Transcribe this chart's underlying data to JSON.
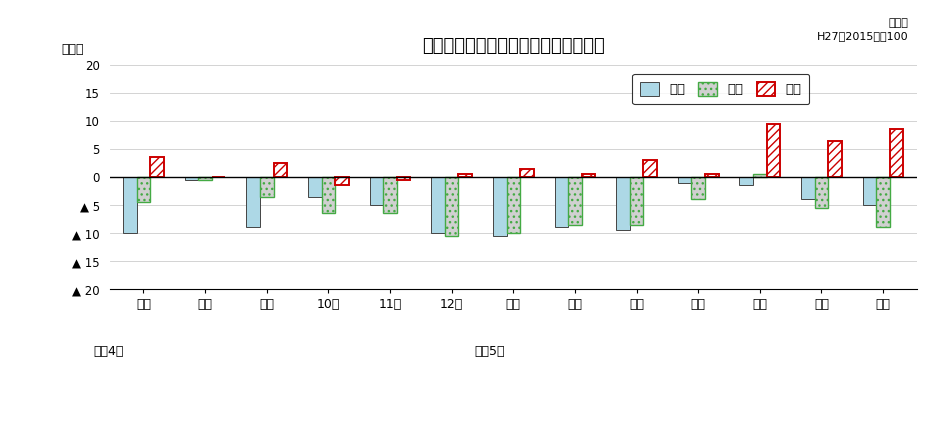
{
  "title": "生産・出荷・在庫の前年同月比の推移",
  "ylabel": "（％）",
  "note_line1": "原指数",
  "note_line2": "H27（2015）＝100",
  "months": [
    "７月",
    "８月",
    "９月",
    "10月",
    "11月",
    "12月",
    "１月",
    "２月",
    "３月",
    "４月",
    "５月",
    "６月",
    "７月"
  ],
  "reiwa4_label": "令和4年",
  "reiwa5_label": "令和5年",
  "reiwa4_idx": 0,
  "reiwa5_idx": 6,
  "production": [
    -10.0,
    -0.5,
    -9.0,
    -3.5,
    -5.0,
    -10.0,
    -10.5,
    -9.0,
    -9.5,
    -1.0,
    -1.5,
    -4.0,
    -5.0
  ],
  "shipment": [
    -4.5,
    -0.5,
    -3.5,
    -6.5,
    -6.5,
    -10.5,
    -10.0,
    -8.5,
    -8.5,
    -4.0,
    0.5,
    -5.5,
    -9.0
  ],
  "inventory": [
    3.5,
    0.0,
    2.5,
    -1.5,
    -0.5,
    0.5,
    1.5,
    0.5,
    3.0,
    0.5,
    9.5,
    6.5,
    8.5
  ],
  "legend_prod": "生産",
  "legend_ship": "出荷",
  "legend_inv": "在庫",
  "ylim": [
    -20,
    20
  ],
  "ytick_vals": [
    20,
    15,
    10,
    5,
    0,
    -5,
    -10,
    -15,
    -20
  ],
  "ytick_labels": [
    "20",
    "15",
    "10",
    "5",
    "0",
    "▲ 5",
    "▲ 10",
    "▲ 15",
    "▲ 20"
  ],
  "prod_color": "#ADD8E6",
  "prod_edge": "#444444",
  "ship_color": "#D0D0D0",
  "ship_edge": "#44AA44",
  "inv_edge": "#CC0000",
  "grid_color": "#CCCCCC",
  "bg_color": "#FFFFFF",
  "bar_width": 0.22
}
